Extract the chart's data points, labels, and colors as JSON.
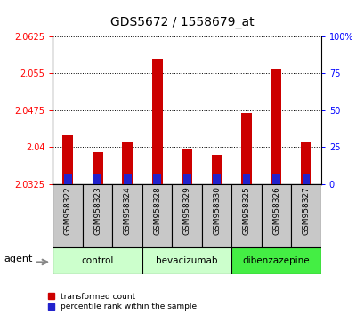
{
  "title": "GDS5672 / 1558679_at",
  "samples": [
    "GSM958322",
    "GSM958323",
    "GSM958324",
    "GSM958328",
    "GSM958329",
    "GSM958330",
    "GSM958325",
    "GSM958326",
    "GSM958327"
  ],
  "transformed_count": [
    2.0425,
    2.039,
    2.041,
    2.058,
    2.0395,
    2.0385,
    2.047,
    2.056,
    2.041
  ],
  "percentile_values": [
    7,
    7,
    7,
    7,
    7,
    7,
    7,
    7,
    7
  ],
  "baseline": 2.0325,
  "ymin": 2.0325,
  "ymax": 2.0625,
  "yticks_left": [
    2.0325,
    2.04,
    2.0475,
    2.055,
    2.0625
  ],
  "yticks_right": [
    0,
    25,
    50,
    75,
    100
  ],
  "bar_color_red": "#cc0000",
  "bar_color_blue": "#2222cc",
  "groups": [
    {
      "label": "control",
      "indices": [
        0,
        1,
        2
      ],
      "color": "#ccffcc"
    },
    {
      "label": "bevacizumab",
      "indices": [
        3,
        4,
        5
      ],
      "color": "#ccffcc"
    },
    {
      "label": "dibenzazepine",
      "indices": [
        6,
        7,
        8
      ],
      "color": "#44ee44"
    }
  ],
  "agent_label": "agent",
  "legend_red": "transformed count",
  "legend_blue": "percentile rank within the sample",
  "bar_width": 0.35,
  "tick_label_fontsize": 7,
  "title_fontsize": 10,
  "sample_box_color": "#c8c8c8",
  "plot_bg": "white"
}
